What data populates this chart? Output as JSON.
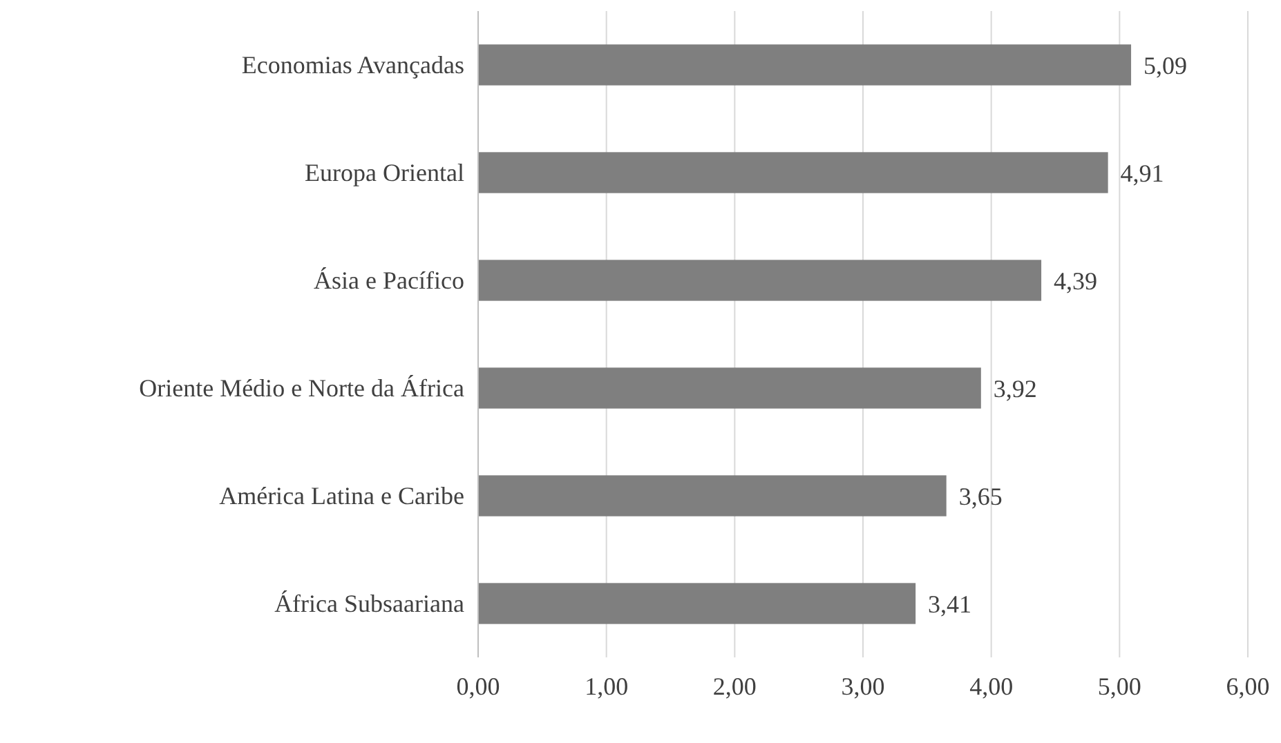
{
  "chart_data": {
    "type": "bar",
    "orientation": "horizontal",
    "categories": [
      "Economias Avançadas",
      "Europa Oriental",
      "Ásia e Pacífico",
      "Oriente Médio e Norte da África",
      "América Latina e Caribe",
      "África Subsaariana"
    ],
    "values": [
      5.09,
      4.91,
      4.39,
      3.92,
      3.65,
      3.41
    ],
    "value_labels": [
      "5,09",
      "4,91",
      "4,39",
      "3,92",
      "3,65",
      "3,41"
    ],
    "color": "#7f7f7f",
    "xlim": [
      0,
      6
    ],
    "xticks": [
      {
        "value": 0,
        "label": "0,00"
      },
      {
        "value": 1,
        "label": "1,00"
      },
      {
        "value": 2,
        "label": "2,00"
      },
      {
        "value": 3,
        "label": "3,00"
      },
      {
        "value": 4,
        "label": "4,00"
      },
      {
        "value": 5,
        "label": "5,00"
      },
      {
        "value": 6,
        "label": "6,00"
      }
    ],
    "grid": "x"
  }
}
